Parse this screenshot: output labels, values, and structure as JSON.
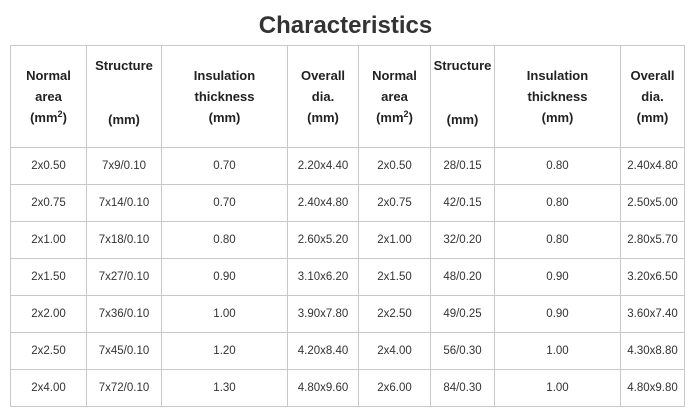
{
  "title": "Characteristics",
  "table": {
    "headers": {
      "normal_area": [
        "Normal",
        "area"
      ],
      "normal_area_unit": "(mm",
      "normal_area_sup": "2",
      "normal_area_close": ")",
      "structure": "Structure",
      "structure_unit": "(mm)",
      "insulation": [
        "Insulation",
        "thickness",
        "(mm)"
      ],
      "overall": [
        "Overall",
        "dia.",
        "(mm)"
      ]
    },
    "rows": [
      [
        "2x0.50",
        "7x9/0.10",
        "0.70",
        "2.20x4.40",
        "2x0.50",
        "28/0.15",
        "0.80",
        "2.40x4.80"
      ],
      [
        "2x0.75",
        "7x14/0.10",
        "0.70",
        "2.40x4.80",
        "2x0.75",
        "42/0.15",
        "0.80",
        "2.50x5.00"
      ],
      [
        "2x1.00",
        "7x18/0.10",
        "0.80",
        "2.60x5.20",
        "2x1.00",
        "32/0.20",
        "0.80",
        "2.80x5.70"
      ],
      [
        "2x1.50",
        "7x27/0.10",
        "0.90",
        "3.10x6.20",
        "2x1.50",
        "48/0.20",
        "0.90",
        "3.20x6.50"
      ],
      [
        "2x2.00",
        "7x36/0.10",
        "1.00",
        "3.90x7.80",
        "2x2.50",
        "49/0.25",
        "0.90",
        "3.60x7.40"
      ],
      [
        "2x2.50",
        "7x45/0.10",
        "1.20",
        "4.20x8.40",
        "2x4.00",
        "56/0.30",
        "1.00",
        "4.30x8.80"
      ],
      [
        "2x4.00",
        "7x72/0.10",
        "1.30",
        "4.80x9.60",
        "2x6.00",
        "84/0.30",
        "1.00",
        "4.80x9.80"
      ]
    ]
  }
}
